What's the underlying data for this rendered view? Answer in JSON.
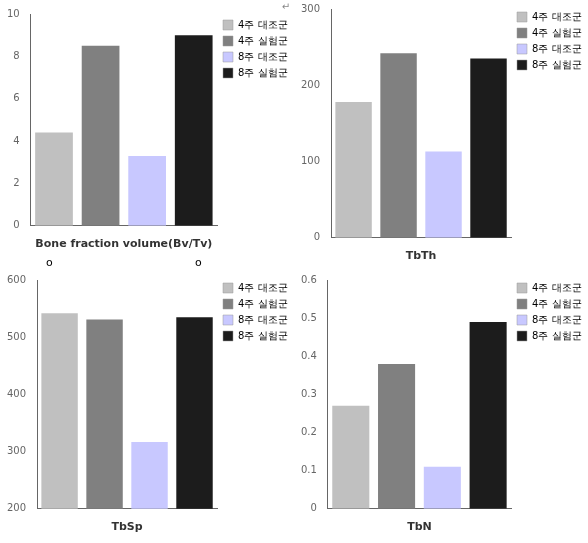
{
  "chart_data": [
    {
      "type": "bar",
      "xlabel": "Bone fraction volume(Bv/Tv)",
      "categories": [
        "4주 대조군",
        "4주 실험군",
        "8주 대조군",
        "8주 실험군"
      ],
      "values": [
        4.4,
        8.5,
        3.3,
        9.0
      ],
      "colors": [
        "#C0C0C0",
        "#808080",
        "#C8C8FF",
        "#1C1C1C"
      ],
      "ylim": [
        0,
        10
      ],
      "yticks": [
        0,
        2,
        4,
        6,
        8,
        10
      ],
      "grid": false,
      "legend": "upper right",
      "tick_labels": "y",
      "annotations": [
        "o",
        "o",
        "↵"
      ]
    },
    {
      "type": "bar",
      "xlabel": "TbTh",
      "categories": [
        "4주 대조군",
        "4주 실험군",
        "8주 대조군",
        "8주 실험군"
      ],
      "values": [
        178,
        242,
        113,
        235
      ],
      "colors": [
        "#C0C0C0",
        "#808080",
        "#C8C8FF",
        "#1C1C1C"
      ],
      "ylim": [
        0,
        300
      ],
      "yticks": [
        0,
        100,
        200,
        300
      ],
      "grid": false,
      "legend": "upper right",
      "tick_labels": "y"
    },
    {
      "type": "bar",
      "xlabel": "TbSp",
      "categories": [
        "4주 대조군",
        "4주 실험군",
        "8주 대조군",
        "8주 실험군"
      ],
      "values": [
        542,
        531,
        317,
        535
      ],
      "colors": [
        "#C0C0C0",
        "#808080",
        "#C8C8FF",
        "#1C1C1C"
      ],
      "ylim": [
        200,
        600
      ],
      "yticks": [
        200,
        300,
        400,
        500,
        600
      ],
      "grid": false,
      "legend": "upper right",
      "tick_labels": "y"
    },
    {
      "type": "bar",
      "xlabel": "TbN",
      "categories": [
        "4주 대조군",
        "4주 실험군",
        "8주 대조군",
        "8주 실험군"
      ],
      "values": [
        0.27,
        0.38,
        0.11,
        0.49
      ],
      "colors": [
        "#C0C0C0",
        "#808080",
        "#C8C8FF",
        "#1C1C1C"
      ],
      "ylim": [
        0,
        0.6
      ],
      "yticks": [
        0,
        0.1,
        0.2,
        0.3,
        0.4,
        0.5,
        0.6
      ],
      "grid": false,
      "legend": "upper right",
      "tick_labels": "y"
    }
  ]
}
